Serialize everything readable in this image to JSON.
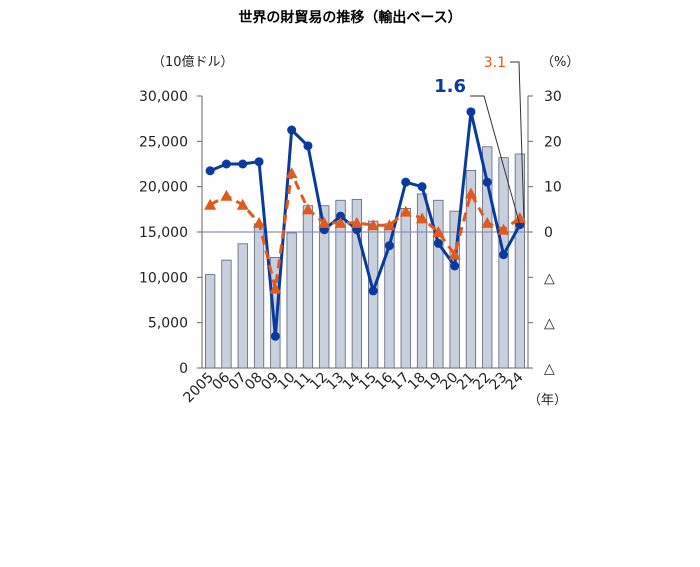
{
  "chart_data": {
    "type": "bar",
    "title": "世界の財貿易の推移（輸出ベース）",
    "left_axis_unit": "（10億ドル）",
    "right_axis_unit": "（%）",
    "x_axis_unit": "（年）",
    "categories": [
      "2005",
      "06",
      "07",
      "08",
      "09",
      "10",
      "11",
      "12",
      "13",
      "14",
      "15",
      "16",
      "17",
      "18",
      "19",
      "20",
      "21",
      "22",
      "23",
      "24"
    ],
    "ylim_left": [
      0,
      30000
    ],
    "left_ticks": [
      "30,000",
      "25,000",
      "20,000",
      "15,000",
      "10,000",
      "5,000",
      "0"
    ],
    "ylim_right": [
      -30,
      30
    ],
    "right_ticks": [
      "30",
      "20",
      "10",
      "0",
      "△",
      "△",
      "△"
    ],
    "series": [
      {
        "axis": "left",
        "kind": "bar",
        "color": "#c8d0de",
        "values": [
          10300,
          11900,
          13700,
          15900,
          12200,
          14900,
          17900,
          17900,
          18500,
          18600,
          16200,
          15900,
          17600,
          19200,
          18500,
          17300,
          21800,
          24400,
          23200,
          23600
        ]
      },
      {
        "axis": "right",
        "kind": "line",
        "style": "solid",
        "color": "#0a3a9e",
        "values": [
          13.5,
          15,
          15,
          15.5,
          -23,
          22.5,
          19,
          0.5,
          3.5,
          0.5,
          -13,
          -3,
          11,
          10,
          -2.5,
          -7.5,
          26.5,
          11,
          -5,
          1.6
        ]
      },
      {
        "axis": "right",
        "kind": "line",
        "style": "dashed",
        "color": "#e05a1e",
        "values": [
          6,
          8,
          6,
          2,
          -12.5,
          13,
          5,
          2,
          2,
          2,
          1.5,
          1.5,
          4.5,
          3,
          0,
          -5,
          8.5,
          2,
          0.5,
          3.1
        ]
      }
    ],
    "annotations": [
      {
        "text": "1.6",
        "series_index": 1,
        "color": "#0a3a9e"
      },
      {
        "text": "3.1",
        "series_index": 2,
        "color": "#e05a1e"
      }
    ],
    "reference_line": {
      "axis": "right",
      "value": 0,
      "color": "#8a94c0"
    }
  }
}
